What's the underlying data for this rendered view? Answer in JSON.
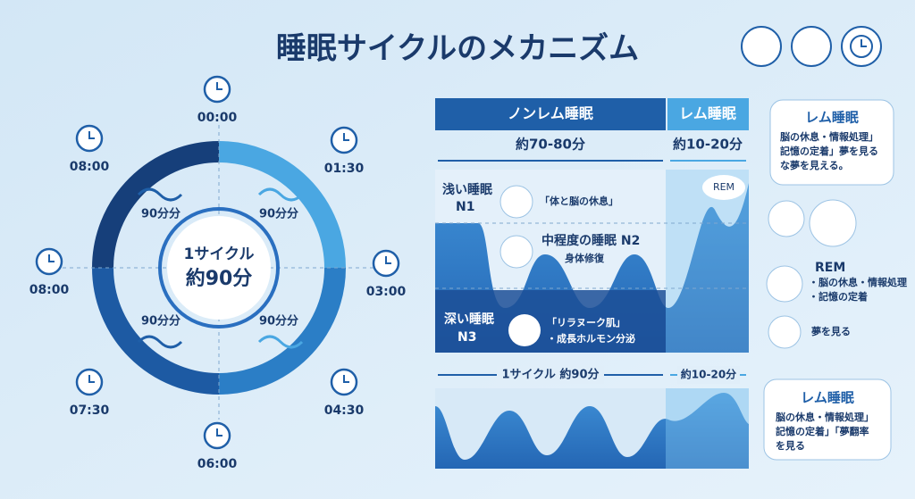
{
  "title": "睡眠サイクルのメカニズム",
  "cycle": {
    "center": [
      "1サイクル",
      "約90分"
    ],
    "quadrants": [
      "90分分",
      "90分分",
      "90分分",
      "90分分"
    ],
    "clocks": [
      "00:00",
      "01:30",
      "03:00",
      "04:30",
      "06:00",
      "07:30",
      "08:00",
      "08:00"
    ]
  },
  "stages": {
    "header": [
      "ノンレム睡眠",
      "レム睡眠"
    ],
    "durations": [
      "約70-80分",
      "約10-20分"
    ],
    "n1": {
      "label": [
        "浅い睡眠",
        "N1"
      ],
      "note": "「体と脳の休息」"
    },
    "n2": {
      "label": "中程度の睡眠 N2",
      "note": "身体修復"
    },
    "n3": {
      "label": [
        "深い睡眠",
        "N3"
      ],
      "note": [
        "「リラヌーク肌」",
        "・成長ホルモン分泌"
      ]
    },
    "rem_bubble": "REM",
    "cycle_span": "1サイクル 約90分",
    "rem_span": "約10-20分"
  },
  "callout_top": {
    "title": "レム睡眠",
    "lines": [
      "脳の休息・情報処理」",
      "記憶の定着」夢を見る",
      "な夢を見える。"
    ]
  },
  "side": {
    "title": "REM",
    "lines": [
      "・脳の休息・情報処理",
      "・記憶の定着"
    ],
    "dream": "夢を見る"
  },
  "callout_bottom": {
    "title": "レム睡眠",
    "lines": [
      "脳の休息・情報処理」",
      "記憶の定着」「夢翻率",
      "を見る"
    ]
  }
}
